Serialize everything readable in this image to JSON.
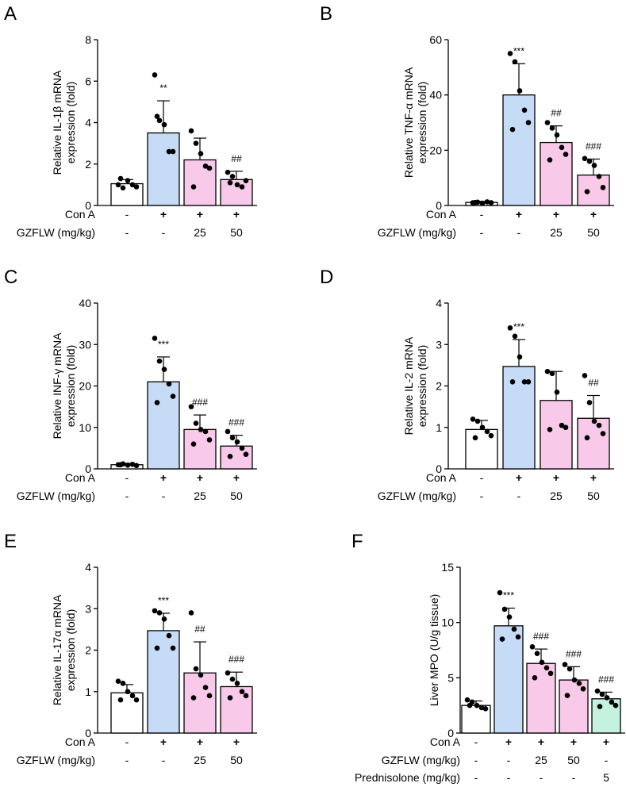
{
  "colors": {
    "white": "#ffffff",
    "blue": "#c6dbf5",
    "pink": "#f8c9e8",
    "mint": "#c4f2df"
  },
  "chart_data": [
    {
      "panel": "A",
      "type": "bar",
      "ylabel": [
        "Relative IL-1β mRNA",
        "expression (fold)"
      ],
      "ylim": [
        0,
        8
      ],
      "yticks": [
        0,
        2,
        4,
        6,
        8
      ],
      "bar_colors": [
        "white",
        "blue",
        "pink",
        "pink"
      ],
      "values": [
        1.05,
        3.5,
        2.2,
        1.25
      ],
      "errors": [
        0.2,
        1.55,
        1.05,
        0.4
      ],
      "points": [
        [
          1.0,
          0.85,
          1.2,
          1.0,
          0.9,
          1.3
        ],
        [
          6.3,
          4.1,
          3.9,
          2.6,
          2.6,
          4.3
        ],
        [
          3.6,
          3.0,
          2.5,
          1.9,
          1.8,
          0.9
        ],
        [
          1.6,
          1.4,
          1.0,
          0.9,
          1.2,
          1.1
        ]
      ],
      "sig": [
        "",
        "**",
        "",
        "##"
      ],
      "conditions": [
        {
          "label": "Con A",
          "marks": [
            "-",
            "+",
            "+",
            "+"
          ]
        },
        {
          "label": "GZFLW (mg/kg)",
          "marks": [
            "-",
            "-",
            "25",
            "50"
          ]
        }
      ]
    },
    {
      "panel": "B",
      "type": "bar",
      "ylabel": [
        "Relative TNF-α mRNA",
        "expression (fold)"
      ],
      "ylim": [
        0,
        60
      ],
      "yticks": [
        0,
        20,
        40,
        60
      ],
      "bar_colors": [
        "white",
        "blue",
        "pink",
        "pink"
      ],
      "values": [
        1.1,
        40.0,
        22.8,
        11.0
      ],
      "errors": [
        0.4,
        11.3,
        6.0,
        5.8
      ],
      "points": [
        [
          1.0,
          1.2,
          0.8,
          1.3,
          1.0,
          1.1
        ],
        [
          55.0,
          52.0,
          41.5,
          34.5,
          30.0,
          27.5
        ],
        [
          30.0,
          28.0,
          25.5,
          21.0,
          18.5,
          16.5
        ],
        [
          17.0,
          16.0,
          14.5,
          10.5,
          6.5,
          5.0
        ]
      ],
      "sig": [
        "",
        "***",
        "##",
        "###"
      ],
      "conditions": [
        {
          "label": "Con A",
          "marks": [
            "-",
            "+",
            "+",
            "+"
          ]
        },
        {
          "label": "GZFLW (mg/kg)",
          "marks": [
            "-",
            "-",
            "25",
            "50"
          ]
        }
      ]
    },
    {
      "panel": "C",
      "type": "bar",
      "ylabel": [
        "Relative INF-γ mRNA",
        "expression (fold)"
      ],
      "ylim": [
        0,
        40
      ],
      "yticks": [
        0,
        10,
        20,
        30,
        40
      ],
      "bar_colors": [
        "white",
        "blue",
        "pink",
        "pink"
      ],
      "values": [
        1.0,
        21.0,
        9.5,
        5.5
      ],
      "errors": [
        0.3,
        6.0,
        3.5,
        2.6
      ],
      "points": [
        [
          1.0,
          1.2,
          0.9,
          1.1,
          0.8,
          1.0
        ],
        [
          31.5,
          26.0,
          24.0,
          20.5,
          17.5,
          16.0
        ],
        [
          15.0,
          11.0,
          9.5,
          9.0,
          7.0,
          6.0
        ],
        [
          9.0,
          7.5,
          6.5,
          5.0,
          3.5,
          3.0
        ]
      ],
      "sig": [
        "",
        "***",
        "###",
        "###"
      ],
      "conditions": [
        {
          "label": "Con A",
          "marks": [
            "-",
            "+",
            "+",
            "+"
          ]
        },
        {
          "label": "GZFLW (mg/kg)",
          "marks": [
            "-",
            "-",
            "25",
            "50"
          ]
        }
      ]
    },
    {
      "panel": "D",
      "type": "bar",
      "ylabel": [
        "Relative IL-2 mRNA",
        "expression (fold)"
      ],
      "ylim": [
        0,
        4
      ],
      "yticks": [
        0,
        1,
        2,
        3,
        4
      ],
      "bar_colors": [
        "white",
        "blue",
        "pink",
        "pink"
      ],
      "values": [
        0.95,
        2.47,
        1.65,
        1.22
      ],
      "errors": [
        0.22,
        0.65,
        0.7,
        0.55
      ],
      "points": [
        [
          1.2,
          1.15,
          1.0,
          0.9,
          0.8,
          0.75
        ],
        [
          3.4,
          3.2,
          2.7,
          2.1,
          2.1,
          2.1
        ],
        [
          2.35,
          2.3,
          1.85,
          1.05,
          1.0,
          0.95
        ],
        [
          2.25,
          1.6,
          1.15,
          1.05,
          0.85,
          0.75
        ]
      ],
      "sig": [
        "",
        "***",
        "",
        "##"
      ],
      "conditions": [
        {
          "label": "Con A",
          "marks": [
            "-",
            "+",
            "+",
            "+"
          ]
        },
        {
          "label": "GZFLW (mg/kg)",
          "marks": [
            "-",
            "-",
            "25",
            "50"
          ]
        }
      ]
    },
    {
      "panel": "E",
      "type": "bar",
      "ylabel": [
        "Relative IL-17α mRNA",
        "expression (fold)"
      ],
      "ylim": [
        0,
        4
      ],
      "yticks": [
        0,
        1,
        2,
        3,
        4
      ],
      "bar_colors": [
        "white",
        "blue",
        "pink",
        "pink"
      ],
      "values": [
        0.97,
        2.47,
        1.45,
        1.12
      ],
      "errors": [
        0.2,
        0.42,
        0.75,
        0.35
      ],
      "points": [
        [
          1.25,
          1.2,
          1.0,
          0.9,
          0.8,
          0.8
        ],
        [
          2.95,
          2.9,
          2.75,
          2.35,
          2.05,
          2.05
        ],
        [
          2.9,
          1.55,
          1.4,
          1.1,
          0.9,
          0.85
        ],
        [
          1.45,
          1.3,
          1.2,
          1.0,
          0.9,
          0.85
        ]
      ],
      "sig": [
        "",
        "***",
        "##",
        "###"
      ],
      "conditions": [
        {
          "label": "Con A",
          "marks": [
            "-",
            "+",
            "+",
            "+"
          ]
        },
        {
          "label": "GZFLW (mg/kg)",
          "marks": [
            "-",
            "-",
            "25",
            "50"
          ]
        }
      ]
    },
    {
      "panel": "F",
      "type": "bar",
      "ylabel": [
        "Liver MPO (U/g tissue)"
      ],
      "ylim": [
        0,
        15
      ],
      "yticks": [
        0,
        5,
        10,
        15
      ],
      "bar_colors": [
        "white",
        "blue",
        "pink",
        "pink",
        "mint"
      ],
      "values": [
        2.5,
        9.7,
        6.3,
        4.8,
        3.1
      ],
      "errors": [
        0.4,
        1.6,
        1.3,
        1.2,
        0.6
      ],
      "points": [
        [
          3.0,
          2.8,
          2.5,
          2.3,
          2.2,
          2.5
        ],
        [
          12.7,
          11.2,
          10.5,
          9.4,
          8.7,
          8.5
        ],
        [
          7.8,
          7.2,
          6.4,
          5.9,
          5.4,
          5.0
        ],
        [
          6.2,
          5.8,
          4.8,
          4.5,
          4.0,
          3.4
        ],
        [
          3.8,
          3.5,
          3.2,
          2.8,
          2.5,
          2.4
        ]
      ],
      "sig": [
        "",
        "***",
        "###",
        "###",
        "###"
      ],
      "conditions": [
        {
          "label": "Con A",
          "marks": [
            "-",
            "+",
            "+",
            "+",
            "+"
          ]
        },
        {
          "label": "GZFLW (mg/kg)",
          "marks": [
            "-",
            "-",
            "25",
            "50",
            "-"
          ]
        },
        {
          "label": "Prednisolone (mg/kg)",
          "marks": [
            "-",
            "-",
            "-",
            "-",
            "5"
          ]
        }
      ]
    }
  ]
}
